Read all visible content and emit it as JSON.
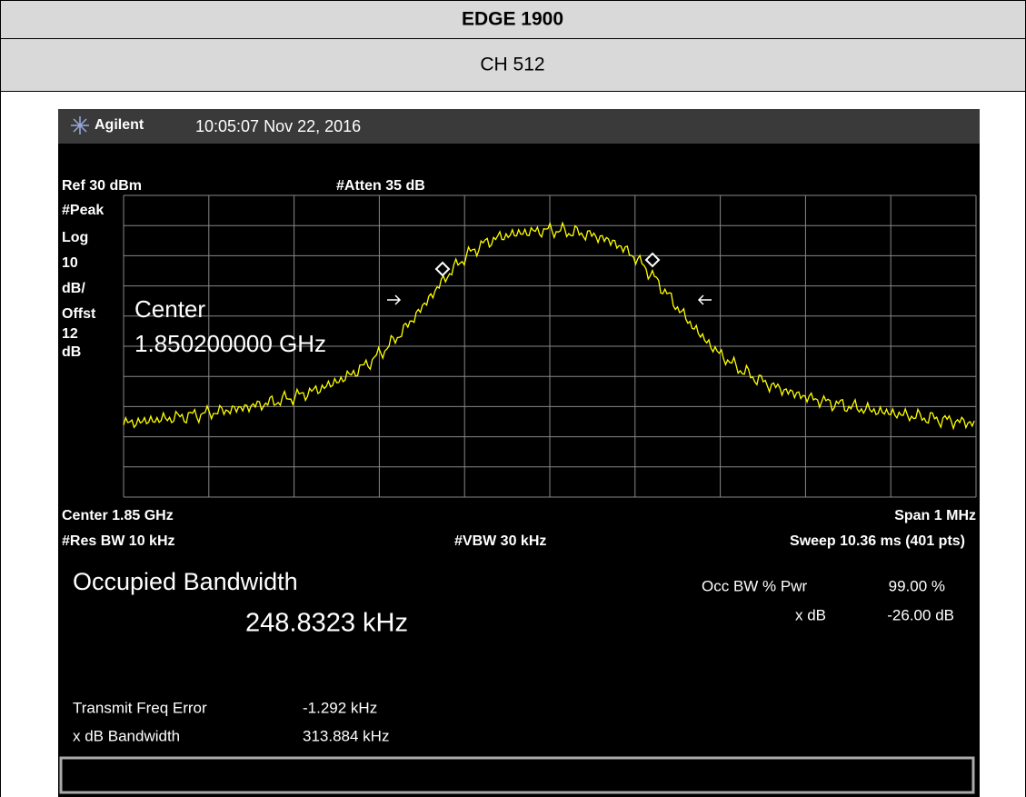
{
  "header": {
    "title": "EDGE 1900",
    "subtitle": "CH 512"
  },
  "screen": {
    "brand": "Agilent",
    "timestamp": "10:05:07  Nov 22, 2016",
    "ref": "Ref 30 dBm",
    "atten": "#Atten 35 dB",
    "scale": [
      "#Peak",
      "Log",
      "10",
      "dB/",
      "Offst",
      "12",
      "dB"
    ],
    "center_overlay": [
      "Center",
      "1.850200000 GHz"
    ],
    "center": "Center 1.85 GHz",
    "span": "Span 1 MHz",
    "res_bw": "#Res BW 10 kHz",
    "vbw": "#VBW 30 kHz",
    "sweep": "Sweep 10.36 ms (401 pts)",
    "measurement": {
      "title": "Occupied Bandwidth",
      "value": "248.8323 kHz",
      "occ_bw_label": "Occ BW % Pwr",
      "occ_bw_value": "99.00 %",
      "xdb_label": "x dB",
      "xdb_value": "-26.00 dB",
      "rows": [
        [
          "Transmit Freq Error",
          "-1.292 kHz"
        ],
        [
          "x dB Bandwidth",
          "313.884 kHz"
        ]
      ]
    }
  }
}
